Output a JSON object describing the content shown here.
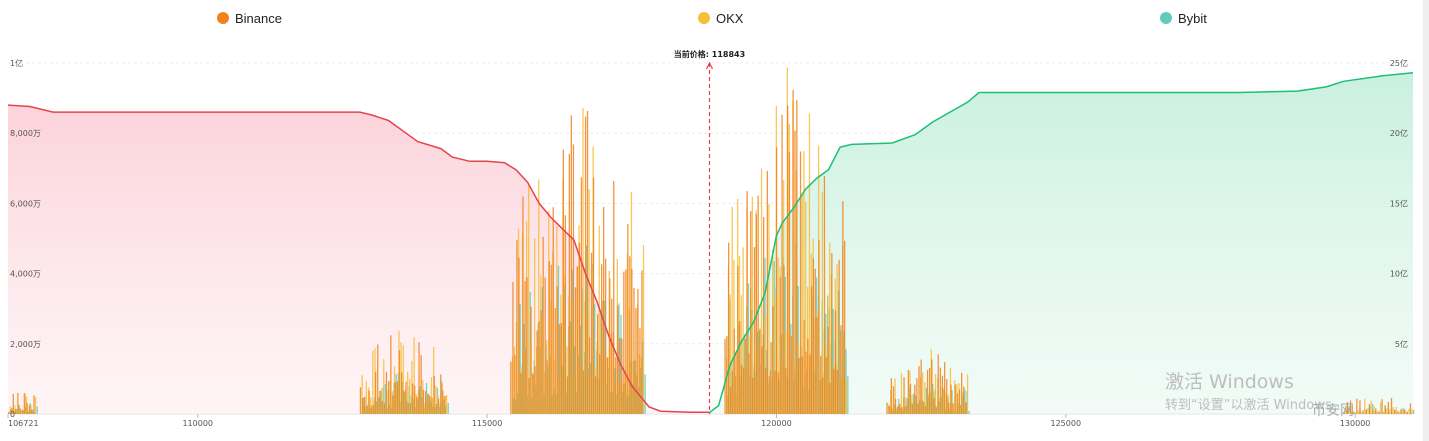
{
  "legend": [
    {
      "name": "Binance",
      "color": "#f0831a"
    },
    {
      "name": "OKX",
      "color": "#f6bd3a"
    },
    {
      "name": "Bybit",
      "color": "#63cbbd"
    }
  ],
  "annotation": "当前价格: 118843",
  "watermark": {
    "line1": "激活 Windows",
    "line2": "转到“设置”以激活 Windows。"
  },
  "logo_text": "币安网",
  "colors": {
    "bid_line": "#e8424f",
    "ask_line": "#1dbf74",
    "bid_fill": "#fcd3da",
    "ask_fill": "#c9f0df",
    "grid": "#ececec",
    "marker": "#e8424f"
  },
  "chart_data": {
    "type": "area",
    "current_price": 118843,
    "x_range": [
      106721,
      131000
    ],
    "x_ticks": [
      106721,
      110000,
      115000,
      120000,
      125000,
      130000
    ],
    "left_axis": {
      "min": 0,
      "max": 100000000,
      "ticks": [
        {
          "v": 0,
          "label": "0"
        },
        {
          "v": 20000000,
          "label": "2,000万"
        },
        {
          "v": 40000000,
          "label": "4,000万"
        },
        {
          "v": 60000000,
          "label": "6,000万"
        },
        {
          "v": 80000000,
          "label": "8,000万"
        },
        {
          "v": 100000000,
          "label": "1亿"
        }
      ]
    },
    "right_axis": {
      "min": 0,
      "max": 2500000000,
      "ticks": [
        {
          "v": 500000000,
          "label": "5亿"
        },
        {
          "v": 1000000000,
          "label": "10亿"
        },
        {
          "v": 1500000000,
          "label": "15亿"
        },
        {
          "v": 2000000000,
          "label": "20亿"
        },
        {
          "v": 2500000000,
          "label": "25亿"
        }
      ]
    },
    "bid_cumulative": [
      [
        106721,
        2200000000
      ],
      [
        107100,
        2190000000
      ],
      [
        107500,
        2150000000
      ],
      [
        108000,
        2150000000
      ],
      [
        109000,
        2150000000
      ],
      [
        110000,
        2150000000
      ],
      [
        111000,
        2150000000
      ],
      [
        112000,
        2150000000
      ],
      [
        112800,
        2150000000
      ],
      [
        113000,
        2130000000
      ],
      [
        113300,
        2090000000
      ],
      [
        113600,
        2000000000
      ],
      [
        113800,
        1940000000
      ],
      [
        114200,
        1890000000
      ],
      [
        114400,
        1830000000
      ],
      [
        114700,
        1800000000
      ],
      [
        115000,
        1800000000
      ],
      [
        115300,
        1790000000
      ],
      [
        115500,
        1740000000
      ],
      [
        115700,
        1650000000
      ],
      [
        115900,
        1500000000
      ],
      [
        116100,
        1400000000
      ],
      [
        116300,
        1320000000
      ],
      [
        116500,
        1240000000
      ],
      [
        116700,
        1000000000
      ],
      [
        116900,
        800000000
      ],
      [
        117100,
        560000000
      ],
      [
        117300,
        360000000
      ],
      [
        117500,
        200000000
      ],
      [
        117800,
        50000000
      ],
      [
        118000,
        20000000
      ],
      [
        118500,
        12000000
      ],
      [
        118843,
        12000000
      ]
    ],
    "ask_cumulative": [
      [
        118843,
        10000000
      ],
      [
        119000,
        60000000
      ],
      [
        119200,
        350000000
      ],
      [
        119400,
        520000000
      ],
      [
        119600,
        650000000
      ],
      [
        119800,
        860000000
      ],
      [
        120000,
        1270000000
      ],
      [
        120100,
        1360000000
      ],
      [
        120300,
        1470000000
      ],
      [
        120500,
        1600000000
      ],
      [
        120700,
        1680000000
      ],
      [
        120900,
        1740000000
      ],
      [
        121100,
        1900000000
      ],
      [
        121300,
        1920000000
      ],
      [
        122000,
        1930000000
      ],
      [
        122400,
        1990000000
      ],
      [
        122700,
        2080000000
      ],
      [
        123000,
        2150000000
      ],
      [
        123300,
        2220000000
      ],
      [
        123500,
        2290000000
      ],
      [
        124000,
        2290000000
      ],
      [
        125000,
        2290000000
      ],
      [
        126000,
        2290000000
      ],
      [
        127000,
        2290000000
      ],
      [
        128000,
        2290000000
      ],
      [
        129000,
        2300000000
      ],
      [
        129500,
        2330000000
      ],
      [
        129800,
        2370000000
      ],
      [
        130500,
        2410000000
      ],
      [
        131000,
        2430000000
      ]
    ],
    "bar_groups": [
      {
        "from": 106721,
        "to": 107200,
        "n": 12,
        "peak": 8000000
      },
      {
        "from": 112800,
        "to": 114300,
        "n": 40,
        "peak": 26000000
      },
      {
        "from": 115400,
        "to": 117700,
        "n": 66,
        "peak": 93000000
      },
      {
        "from": 119100,
        "to": 121200,
        "n": 66,
        "peak": 100000000
      },
      {
        "from": 121900,
        "to": 123300,
        "n": 38,
        "peak": 19000000
      },
      {
        "from": 129800,
        "to": 131000,
        "n": 22,
        "peak": 6000000
      }
    ]
  }
}
